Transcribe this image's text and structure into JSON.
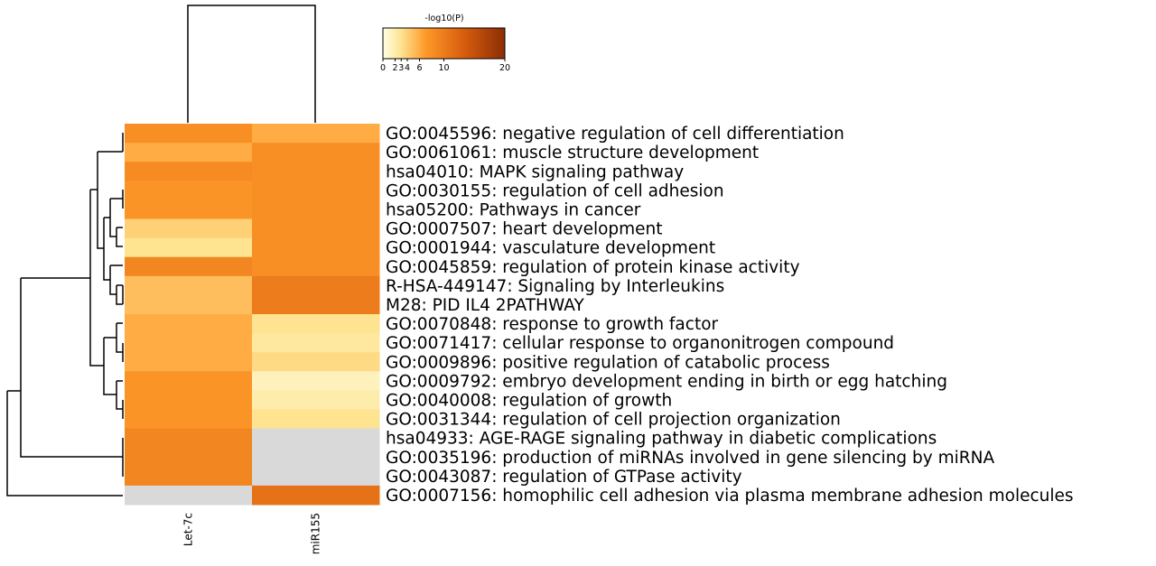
{
  "chart_data": {
    "type": "heatmap",
    "columns": [
      "Let-7c",
      "miR155"
    ],
    "rows": [
      "GO:0045596: negative regulation of cell differentiation",
      "GO:0061061: muscle structure development",
      "hsa04010: MAPK signaling pathway",
      "GO:0030155: regulation of cell adhesion",
      "hsa05200: Pathways in cancer",
      "GO:0007507: heart development",
      "GO:0001944: vasculature development",
      "GO:0045859: regulation of protein kinase activity",
      "R-HSA-449147: Signaling by Interleukins",
      "M28: PID IL4 2PATHWAY",
      "GO:0070848: response to growth factor",
      "GO:0071417: cellular response to organonitrogen compound",
      "GO:0009896: positive regulation of catabolic process",
      "GO:0009792: embryo development ending in birth or egg hatching",
      "GO:0040008: regulation of growth",
      "GO:0031344: regulation of cell projection organization",
      "hsa04933: AGE-RAGE signaling pathway in diabetic complications",
      "GO:0035196: production of miRNAs involved in gene silencing by miRNA",
      "GO:0043087: regulation of GTPase activity",
      "GO:0007156: homophilic cell adhesion via plasma membrane adhesion molecules"
    ],
    "values": [
      [
        8,
        6
      ],
      [
        6,
        8
      ],
      [
        8.5,
        8
      ],
      [
        7.5,
        8
      ],
      [
        7.5,
        8
      ],
      [
        4,
        8
      ],
      [
        3,
        8
      ],
      [
        9,
        8
      ],
      [
        5,
        10
      ],
      [
        5,
        10
      ],
      [
        6,
        3
      ],
      [
        6,
        2.5
      ],
      [
        6,
        3.5
      ],
      [
        7.5,
        1.5
      ],
      [
        7.5,
        2
      ],
      [
        7.5,
        3
      ],
      [
        9,
        null
      ],
      [
        9,
        null
      ],
      [
        9,
        null
      ],
      [
        null,
        11
      ]
    ],
    "colorbar": {
      "label": "-log10(P)",
      "min": 0,
      "max": 20,
      "ticks": [
        0,
        2,
        3,
        4,
        6,
        10,
        20
      ],
      "colors": [
        "#ffffe5",
        "#fed98e",
        "#fe9929",
        "#d95f0e",
        "#993404"
      ]
    },
    "missing_color": "#d9d9d9"
  }
}
